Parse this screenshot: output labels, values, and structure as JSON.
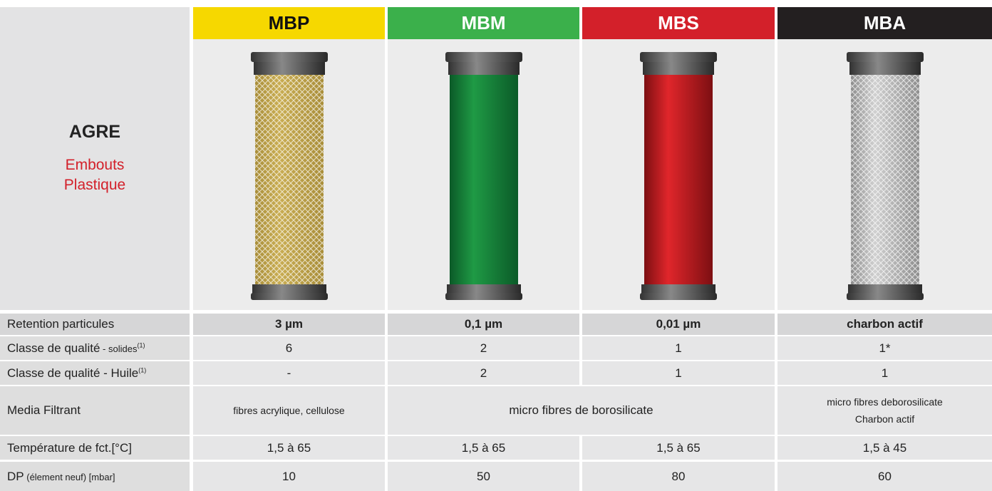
{
  "header": {
    "brand": "AGRE",
    "subtitle_lines": [
      "Embouts",
      "Plastique"
    ]
  },
  "columns": [
    {
      "name": "MBP",
      "color": "#f6d800",
      "text_color": "#111111"
    },
    {
      "name": "MBM",
      "color": "#3bb04b",
      "text_color": "#ffffff"
    },
    {
      "name": "MBS",
      "color": "#d3202a",
      "text_color": "#ffffff"
    },
    {
      "name": "MBA",
      "color": "#231f20",
      "text_color": "#ffffff"
    }
  ],
  "rows": [
    {
      "label": {
        "main": "Retention particules"
      },
      "bold": true,
      "cells": [
        {
          "lines": [
            "3 µm"
          ]
        },
        {
          "lines": [
            "0,1 µm"
          ]
        },
        {
          "lines": [
            "0,01 µm"
          ]
        },
        {
          "lines": [
            "charbon actif"
          ]
        }
      ]
    },
    {
      "label": {
        "main": "Classe de qualité",
        "small": " - solides",
        "sup": "(1)"
      },
      "cells": [
        {
          "lines": [
            "6"
          ]
        },
        {
          "lines": [
            "2"
          ]
        },
        {
          "lines": [
            "1"
          ]
        },
        {
          "lines": [
            "1*"
          ]
        }
      ]
    },
    {
      "label": {
        "main": "Classe de qualité - Huile",
        "sup": "(1)"
      },
      "cells": [
        {
          "lines": [
            "-"
          ]
        },
        {
          "lines": [
            "2"
          ]
        },
        {
          "lines": [
            "1"
          ]
        },
        {
          "lines": [
            "1"
          ]
        }
      ]
    },
    {
      "label": {
        "main": "Media Filtrant"
      },
      "cells": [
        {
          "lines": [
            "fibres acrylique, cellulose"
          ],
          "small": true
        },
        {
          "lines": [
            "micro fibres de borosilicate"
          ],
          "span": 2
        },
        {
          "lines": [
            "micro fibres deborosilicate",
            "Charbon actif"
          ],
          "small": true
        }
      ]
    },
    {
      "label": {
        "main": "Température de fct.[°C]"
      },
      "cells": [
        {
          "lines": [
            "1,5 à 65"
          ]
        },
        {
          "lines": [
            "1,5 à 65"
          ]
        },
        {
          "lines": [
            "1,5 à 65"
          ]
        },
        {
          "lines": [
            "1,5 à 45"
          ]
        }
      ]
    },
    {
      "label": {
        "main": "DP",
        "small": " (élement neuf) [mbar]"
      },
      "cells": [
        {
          "lines": [
            "10"
          ]
        },
        {
          "lines": [
            "50"
          ]
        },
        {
          "lines": [
            "80"
          ]
        },
        {
          "lines": [
            "60"
          ]
        }
      ]
    }
  ]
}
